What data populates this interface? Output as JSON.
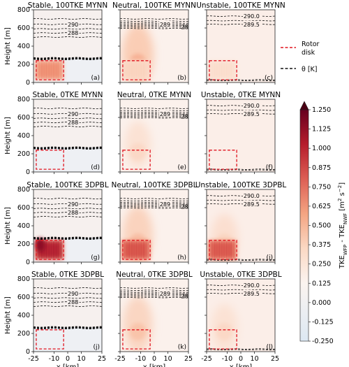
{
  "figure": {
    "ylabel": "Height [m]",
    "xlabel": "x [km]",
    "colorbar": {
      "label_html": "TKE<tspan baseline-shift='sub' font-size='7'>WFP</tspan> - TKE<tspan baseline-shift='sub' font-size='7'>NWF</tspan> [m<tspan baseline-shift='super' font-size='7'>2</tspan> s<tspan baseline-shift='super' font-size='7'>−2</tspan>]",
      "ticks": [
        "1.250",
        "1.125",
        "1.000",
        "0.875",
        "0.750",
        "0.625",
        "0.500",
        "0.375",
        "0.250",
        "0.125",
        "0.000",
        "-0.125",
        "-0.250"
      ],
      "tick_values": [
        1.25,
        1.125,
        1.0,
        0.875,
        0.75,
        0.625,
        0.5,
        0.375,
        0.25,
        0.125,
        0.0,
        -0.125,
        -0.25
      ]
    },
    "legend": {
      "items": [
        {
          "label": "Rotor\ndisk",
          "style": "red-dashed"
        },
        {
          "label": "θ [K]",
          "style": "black-dashed"
        }
      ]
    },
    "xticks": [
      "-25",
      "-10",
      "0",
      "10",
      "25"
    ],
    "xtick_values": [
      -25,
      -10,
      0,
      10,
      25
    ],
    "yticks": [
      "0",
      "200",
      "400",
      "600",
      "800"
    ],
    "ytick_values": [
      0,
      200,
      400,
      600,
      800
    ]
  },
  "chart_data": [
    {
      "type": "heatmap",
      "title": "Stable, 100TKE MYNN",
      "panel": "(a)",
      "stability": "stable",
      "rotor_max": 0.55,
      "wake_lobe": 0.0,
      "contours": [
        {
          "label": "290",
          "height": 640
        },
        {
          "label": "288",
          "height": 545
        }
      ]
    },
    {
      "type": "heatmap",
      "title": "Neutral, 100TKE MYNN",
      "panel": "(b)",
      "stability": "neutral",
      "rotor_max": 0.25,
      "wake_lobe": 0.35,
      "contours": [
        {
          "label": "289",
          "height": 640
        }
      ]
    },
    {
      "type": "heatmap",
      "title": "Unstable, 100TKE MYNN",
      "panel": "(c)",
      "stability": "unstable",
      "rotor_max": 0.18,
      "wake_lobe": 0.0,
      "contours": [
        {
          "label": "290.0",
          "height": 730
        },
        {
          "label": "289.5",
          "height": 640
        }
      ]
    },
    {
      "type": "heatmap",
      "title": "Stable, 0TKE MYNN",
      "panel": "(d)",
      "stability": "stable",
      "rotor_max": 0.0,
      "wake_lobe": 0.0,
      "contours": [
        {
          "label": "290",
          "height": 640
        },
        {
          "label": "288",
          "height": 545
        }
      ]
    },
    {
      "type": "heatmap",
      "title": "Neutral, 0TKE MYNN",
      "panel": "(e)",
      "stability": "neutral",
      "rotor_max": 0.0,
      "wake_lobe": 0.18,
      "contours": [
        {
          "label": "289",
          "height": 640
        }
      ]
    },
    {
      "type": "heatmap",
      "title": "Unstable, 0TKE MYNN",
      "panel": "(f)",
      "stability": "unstable",
      "rotor_max": 0.0,
      "wake_lobe": 0.0,
      "contours": [
        {
          "label": "290.0",
          "height": 730
        },
        {
          "label": "289.5",
          "height": 640
        }
      ]
    },
    {
      "type": "heatmap",
      "title": "Stable, 100TKE 3DPBL",
      "panel": "(g)",
      "stability": "stable",
      "rotor_max": 1.05,
      "wake_lobe": 0.0,
      "contours": [
        {
          "label": "290",
          "height": 640
        },
        {
          "label": "288",
          "height": 545
        }
      ]
    },
    {
      "type": "heatmap",
      "title": "Neutral, 100TKE 3DPBL",
      "panel": "(h)",
      "stability": "neutral",
      "rotor_max": 0.8,
      "wake_lobe": 0.3,
      "contours": [
        {
          "label": "289",
          "height": 640
        }
      ]
    },
    {
      "type": "heatmap",
      "title": "Unstable, 100TKE 3DPBL",
      "panel": "(i)",
      "stability": "unstable",
      "rotor_max": 0.78,
      "wake_lobe": 0.2,
      "contours": [
        {
          "label": "290.0",
          "height": 730
        },
        {
          "label": "289.5",
          "height": 640
        }
      ]
    },
    {
      "type": "heatmap",
      "title": "Stable, 0TKE 3DPBL",
      "panel": "(j)",
      "stability": "stable",
      "rotor_max": 0.0,
      "wake_lobe": 0.0,
      "contours": [
        {
          "label": "290",
          "height": 640
        },
        {
          "label": "288",
          "height": 545
        }
      ]
    },
    {
      "type": "heatmap",
      "title": "Neutral, 0TKE 3DPBL",
      "panel": "(k)",
      "stability": "neutral",
      "rotor_max": 0.0,
      "wake_lobe": 0.28,
      "contours": [
        {
          "label": "289",
          "height": 640
        }
      ]
    },
    {
      "type": "heatmap",
      "title": "Unstable, 0TKE 3DPBL",
      "panel": "(l)",
      "stability": "unstable",
      "rotor_max": 0.0,
      "wake_lobe": 0.18,
      "contours": [
        {
          "label": "290.0",
          "height": 730
        },
        {
          "label": "289.5",
          "height": 640
        }
      ]
    }
  ]
}
